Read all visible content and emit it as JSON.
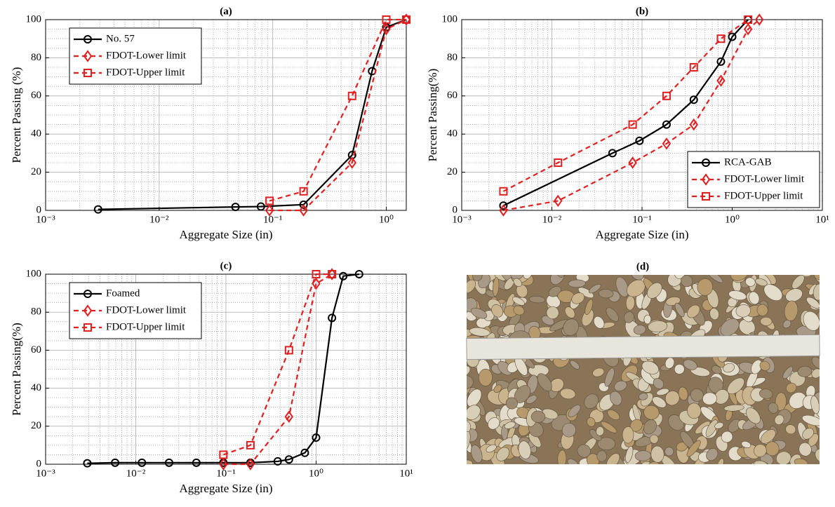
{
  "chart_data": [
    {
      "type": "line",
      "title": "(a)",
      "x_label": "Aggregate Size (in)",
      "y_label": "Percent Passing (%)",
      "xscale": "log",
      "xlim": [
        0.001,
        1.5
      ],
      "xticks": [
        {
          "value": 0.001,
          "label": "10⁻³"
        },
        {
          "value": 0.01,
          "label": "10⁻²"
        },
        {
          "value": 0.1,
          "label": "10⁻¹"
        },
        {
          "value": 1,
          "label": "10⁰"
        }
      ],
      "ylim": [
        0,
        100
      ],
      "yticks": [
        0,
        20,
        40,
        60,
        80,
        100
      ],
      "grid": true,
      "legend": "top-left",
      "series": [
        {
          "name": "No. 57",
          "color": "#000000",
          "marker": "circle",
          "dash": false,
          "x": [
            0.0029,
            0.047,
            0.0787,
            0.187,
            0.5,
            0.75,
            1.0,
            1.5
          ],
          "values": [
            0.5,
            1.8,
            2,
            3,
            29,
            73,
            96,
            100
          ]
        },
        {
          "name": "FDOT-Lower limit",
          "color": "#e02020",
          "marker": "diamond",
          "dash": true,
          "x": [
            0.0937,
            0.187,
            0.5,
            1.0,
            1.5
          ],
          "values": [
            0,
            0,
            25,
            95,
            100
          ]
        },
        {
          "name": "FDOT-Upper limit",
          "color": "#e02020",
          "marker": "square",
          "dash": true,
          "x": [
            0.0937,
            0.187,
            0.5,
            1.0,
            1.5
          ],
          "values": [
            5,
            10,
            60,
            100,
            100
          ]
        }
      ]
    },
    {
      "type": "line",
      "title": "(b)",
      "x_label": "Aggregate Size (in)",
      "y_label": "Percent Passing(%)",
      "xscale": "log",
      "xlim": [
        0.001,
        10
      ],
      "xticks": [
        {
          "value": 0.001,
          "label": "10⁻³"
        },
        {
          "value": 0.01,
          "label": "10⁻²"
        },
        {
          "value": 0.1,
          "label": "10⁻¹"
        },
        {
          "value": 1,
          "label": "10⁰"
        },
        {
          "value": 10,
          "label": "10¹"
        }
      ],
      "ylim": [
        0,
        100
      ],
      "yticks": [
        0,
        20,
        40,
        60,
        80,
        100
      ],
      "grid": true,
      "legend": "bottom-right",
      "series": [
        {
          "name": "RCA-GAB",
          "color": "#000000",
          "marker": "circle",
          "dash": false,
          "x": [
            0.0029,
            0.047,
            0.0937,
            0.187,
            0.375,
            0.75,
            1.0,
            1.5
          ],
          "values": [
            2.5,
            30,
            36.5,
            45,
            58,
            78,
            91,
            100
          ]
        },
        {
          "name": "FDOT-Lower limit",
          "color": "#e02020",
          "marker": "diamond",
          "dash": true,
          "x": [
            0.0029,
            0.0117,
            0.0787,
            0.187,
            0.375,
            0.75,
            1.5,
            2
          ],
          "values": [
            0,
            5,
            25,
            35,
            45,
            68,
            95,
            100
          ]
        },
        {
          "name": "FDOT-Upper limit",
          "color": "#e02020",
          "marker": "square",
          "dash": true,
          "x": [
            0.0029,
            0.0117,
            0.0787,
            0.187,
            0.375,
            0.75,
            1.5
          ],
          "values": [
            10,
            25,
            45,
            60,
            75,
            90,
            100
          ]
        }
      ]
    },
    {
      "type": "line",
      "title": "(c)",
      "x_label": "Aggregate Size (in)",
      "y_label": "Percent Passing(%)",
      "xscale": "log",
      "xlim": [
        0.001,
        10
      ],
      "xticks": [
        {
          "value": 0.001,
          "label": "10⁻³"
        },
        {
          "value": 0.01,
          "label": "10⁻²"
        },
        {
          "value": 0.1,
          "label": "10⁻¹"
        },
        {
          "value": 1,
          "label": "10⁰"
        },
        {
          "value": 10,
          "label": "10¹"
        }
      ],
      "ylim": [
        0,
        100
      ],
      "yticks": [
        0,
        20,
        40,
        60,
        80,
        100
      ],
      "grid": true,
      "legend": "top-left",
      "series": [
        {
          "name": "Foamed",
          "color": "#000000",
          "marker": "circle",
          "dash": false,
          "x": [
            0.0029,
            0.0059,
            0.0117,
            0.0234,
            0.047,
            0.0937,
            0.187,
            0.375,
            0.5,
            0.75,
            1.0,
            1.5,
            2,
            3
          ],
          "values": [
            0.5,
            0.8,
            0.8,
            0.8,
            0.8,
            0.8,
            0.8,
            1.5,
            2.5,
            6,
            14,
            77,
            99,
            100
          ]
        },
        {
          "name": "FDOT-Lower limit",
          "color": "#e02020",
          "marker": "diamond",
          "dash": true,
          "x": [
            0.0937,
            0.187,
            0.5,
            1.0,
            1.5
          ],
          "values": [
            0,
            0,
            25,
            95,
            100
          ]
        },
        {
          "name": "FDOT-Upper limit",
          "color": "#e02020",
          "marker": "square",
          "dash": true,
          "x": [
            0.0937,
            0.187,
            0.5,
            1.0,
            1.5
          ],
          "values": [
            5,
            10,
            60,
            100,
            100
          ]
        }
      ]
    }
  ],
  "photo_panel": {
    "title": "(d)"
  }
}
